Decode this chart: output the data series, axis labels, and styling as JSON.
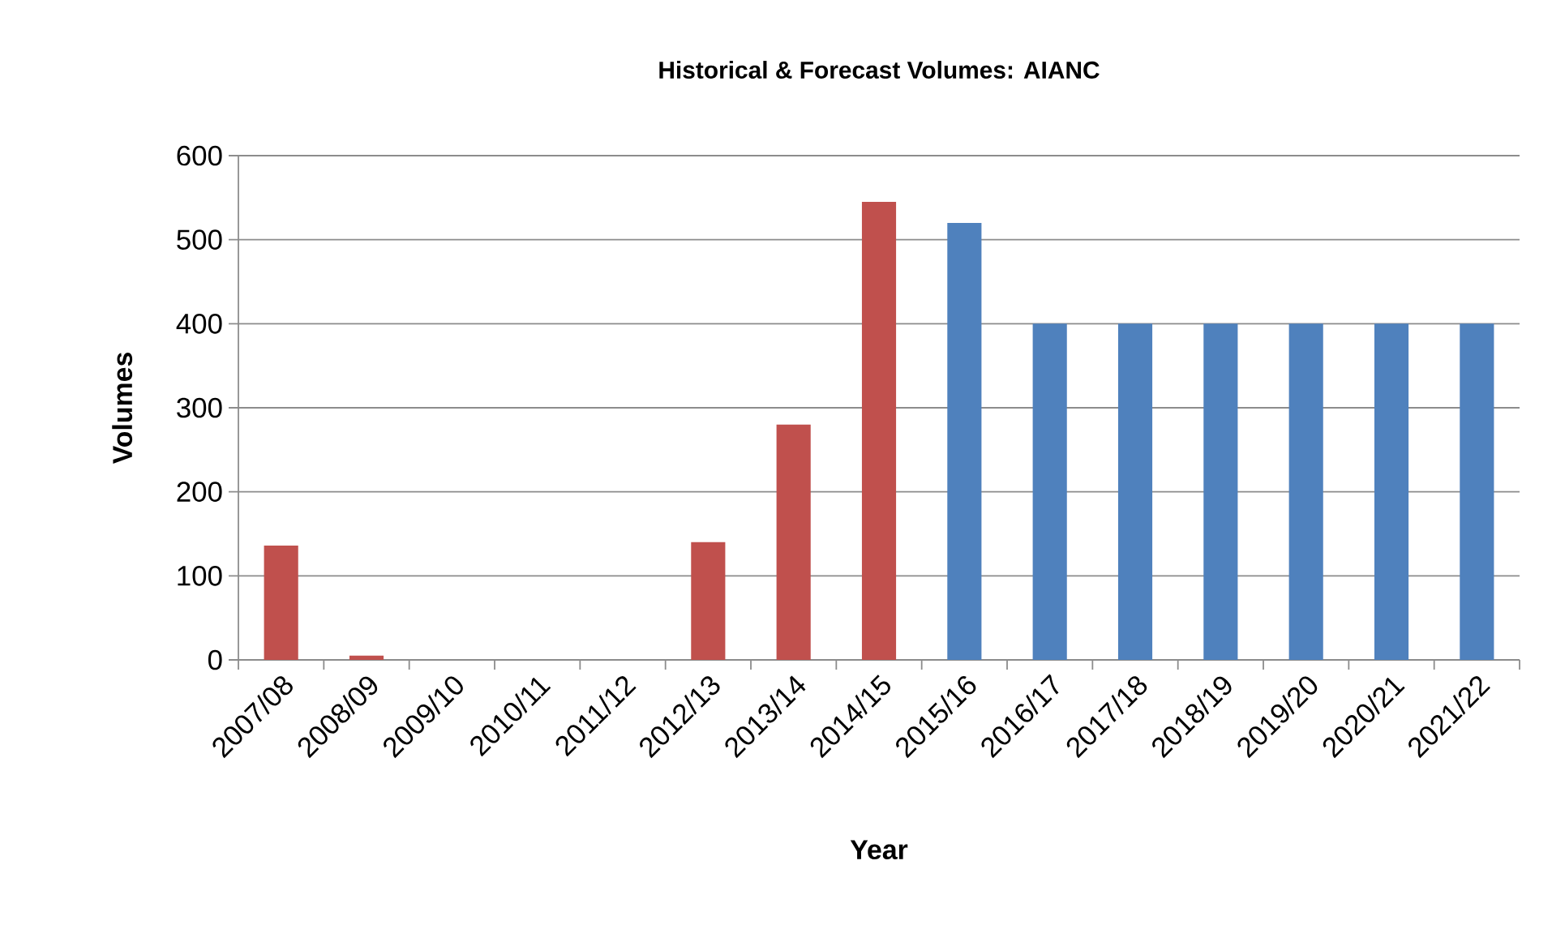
{
  "chart_data": {
    "type": "bar",
    "title": "Historical & Forecast Volumes: AIANC",
    "xlabel": "Year",
    "ylabel": "Volumes",
    "categories": [
      "2007/08",
      "2008/09",
      "2009/10",
      "2010/11",
      "2011/12",
      "2012/13",
      "2013/14",
      "2014/15",
      "2015/16",
      "2016/17",
      "2017/18",
      "2018/19",
      "2019/20",
      "2020/21",
      "2021/22"
    ],
    "values": [
      136,
      5,
      0,
      0,
      0,
      140,
      280,
      545,
      520,
      400,
      400,
      400,
      400,
      400,
      400
    ],
    "colors": [
      "#c0504d",
      "#c0504d",
      "#c0504d",
      "#c0504d",
      "#c0504d",
      "#c0504d",
      "#c0504d",
      "#c0504d",
      "#4f81bd",
      "#4f81bd",
      "#4f81bd",
      "#4f81bd",
      "#4f81bd",
      "#4f81bd",
      "#4f81bd"
    ],
    "ylim": [
      0,
      600
    ],
    "yticks": [
      0,
      100,
      200,
      300,
      400,
      500,
      600
    ],
    "grid": "y"
  }
}
